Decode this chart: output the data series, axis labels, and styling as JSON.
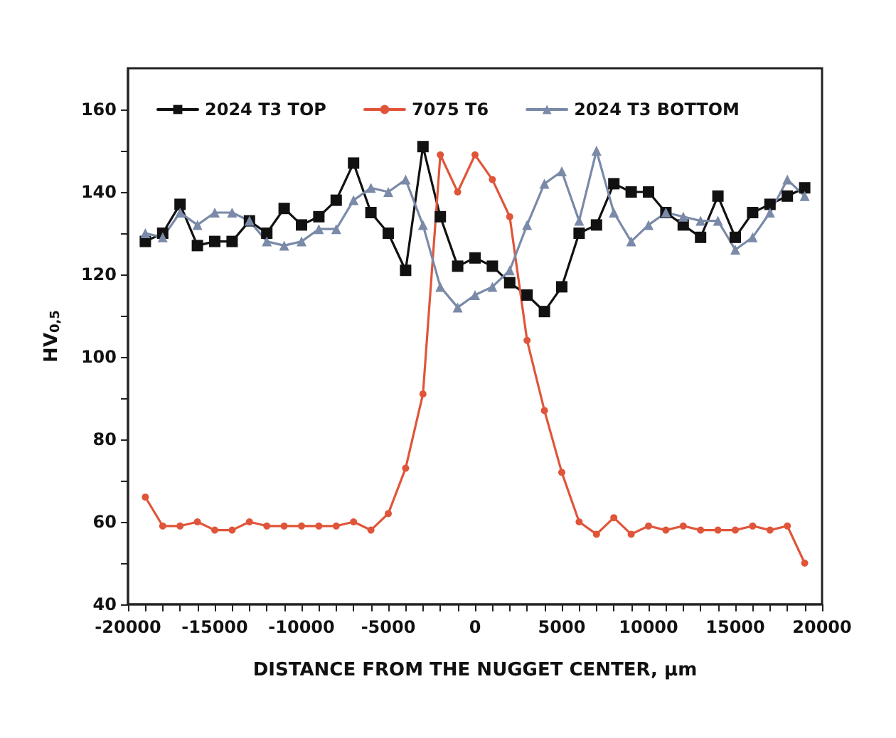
{
  "chart_data": {
    "type": "line",
    "xlabel": "DISTANCE FROM THE NUGGET CENTER, μm",
    "ylabel": "HV$_{0,5}$",
    "x": [
      -19000,
      -18000,
      -17000,
      -16000,
      -15000,
      -14000,
      -13000,
      -12000,
      -11000,
      -10000,
      -9000,
      -8000,
      -7000,
      -6000,
      -5000,
      -4000,
      -3000,
      -2000,
      -1000,
      0,
      1000,
      2000,
      3000,
      4000,
      5000,
      6000,
      7000,
      8000,
      9000,
      10000,
      11000,
      12000,
      13000,
      14000,
      15000,
      16000,
      17000,
      18000,
      19000
    ],
    "series": [
      {
        "name": "2024 T3 TOP",
        "color": "#111111",
        "marker": "square",
        "values": [
          128,
          130,
          137,
          127,
          128,
          128,
          133,
          130,
          136,
          132,
          134,
          138,
          147,
          135,
          130,
          121,
          151,
          134,
          122,
          124,
          122,
          118,
          115,
          111,
          117,
          130,
          132,
          142,
          140,
          140,
          135,
          132,
          129,
          139,
          129,
          135,
          137,
          139,
          141
        ]
      },
      {
        "name": "7075 T6",
        "color": "#e0553a",
        "marker": "circle",
        "values": [
          66,
          59,
          59,
          60,
          58,
          58,
          60,
          59,
          59,
          59,
          59,
          59,
          60,
          58,
          62,
          73,
          91,
          149,
          140,
          149,
          143,
          134,
          104,
          87,
          72,
          60,
          57,
          61,
          57,
          59,
          58,
          59,
          58,
          58,
          58,
          59,
          58,
          59,
          50
        ]
      },
      {
        "name": "2024 T3 BOTTOM",
        "color": "#7a8aa8",
        "marker": "triangle",
        "values": [
          130,
          129,
          135,
          132,
          135,
          135,
          133,
          128,
          127,
          128,
          131,
          131,
          138,
          141,
          140,
          143,
          132,
          117,
          112,
          115,
          117,
          121,
          132,
          142,
          145,
          133,
          150,
          135,
          128,
          132,
          135,
          134,
          133,
          133,
          126,
          129,
          135,
          143,
          139
        ]
      }
    ],
    "xlim": [
      -20000,
      20000
    ],
    "xticks": [
      -20000,
      {
        "value": -19000,
        "label": null
      },
      {
        "value": -18000,
        "label": null
      },
      {
        "value": -17000,
        "label": null
      },
      {
        "value": -16000,
        "label": null
      },
      -15000,
      {
        "value": -14000,
        "label": null
      },
      {
        "value": -13000,
        "label": null
      },
      {
        "value": -12000,
        "label": null
      },
      {
        "value": -11000,
        "label": null
      },
      -10000,
      {
        "value": -9000,
        "label": null
      },
      {
        "value": -8000,
        "label": null
      },
      {
        "value": -7000,
        "label": null
      },
      {
        "value": -6000,
        "label": null
      },
      -5000,
      {
        "value": -4000,
        "label": null
      },
      {
        "value": -3000,
        "label": null
      },
      {
        "value": -2000,
        "label": null
      },
      {
        "value": -1000,
        "label": null
      },
      0,
      {
        "value": 1000,
        "label": null
      },
      {
        "value": 2000,
        "label": null
      },
      {
        "value": 3000,
        "label": null
      },
      {
        "value": 4000,
        "label": null
      },
      5000,
      {
        "value": 6000,
        "label": null
      },
      {
        "value": 7000,
        "label": null
      },
      {
        "value": 8000,
        "label": null
      },
      {
        "value": 9000,
        "label": null
      },
      10000,
      {
        "value": 11000,
        "label": null
      },
      {
        "value": 12000,
        "label": null
      },
      {
        "value": 13000,
        "label": null
      },
      {
        "value": 14000,
        "label": null
      },
      15000,
      {
        "value": 16000,
        "label": null
      },
      {
        "value": 17000,
        "label": null
      },
      {
        "value": 18000,
        "label": null
      },
      {
        "value": 19000,
        "label": null
      },
      20000
    ],
    "ylim": [
      40,
      170
    ],
    "yticks": [
      40,
      {
        "value": 50,
        "label": null
      },
      60,
      {
        "value": 70,
        "label": null
      },
      80,
      {
        "value": 90,
        "label": null
      },
      100,
      {
        "value": 110,
        "label": null
      },
      120,
      {
        "value": 130,
        "label": null
      },
      140,
      {
        "value": 150,
        "label": null
      },
      160
    ],
    "grid": false,
    "legend": "top",
    "line_style": "solid"
  }
}
